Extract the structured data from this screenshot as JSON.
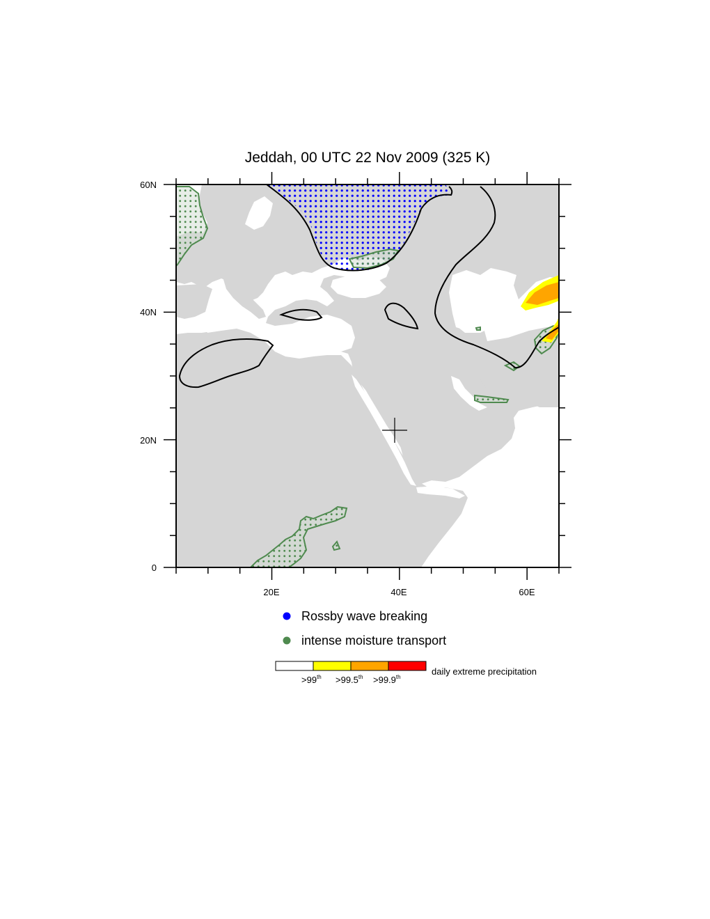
{
  "title": "Jeddah, 00 UTC 22 Nov 2009 (325 K)",
  "map": {
    "lon_range": [
      5,
      65
    ],
    "lat_range": [
      0,
      60
    ],
    "x_tick_labels": [
      "20E",
      "40E",
      "60E"
    ],
    "y_tick_labels": [
      "60N",
      "40N",
      "20N",
      "0"
    ],
    "marker_location_lon": 39.2,
    "marker_location_lat": 21.5,
    "land_color": "#d6d6d6",
    "ocean_color": "#ffffff"
  },
  "legend": {
    "rwb_label": "Rossby wave breaking",
    "rwb_color": "#0000ff",
    "moisture_label": "intense moisture transport",
    "moisture_color": "#4f8a4f"
  },
  "colorbar": {
    "label": "daily extreme precipitation",
    "colors": [
      "#ffffff",
      "#ffff00",
      "#ffa500",
      "#ff0000"
    ],
    "ticks": [
      {
        "text": ">99",
        "sup": "th"
      },
      {
        "text": ">99.5",
        "sup": "th"
      },
      {
        "text": ">99.9",
        "sup": "th"
      }
    ]
  }
}
